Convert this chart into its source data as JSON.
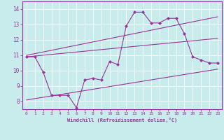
{
  "xlabel": "Windchill (Refroidissement éolien,°C)",
  "bg_color": "#c8ecec",
  "line_color": "#993399",
  "xlim": [
    -0.5,
    23.5
  ],
  "ylim": [
    7.5,
    14.5
  ],
  "yticks": [
    8,
    9,
    10,
    11,
    12,
    13,
    14
  ],
  "xticks": [
    0,
    1,
    2,
    3,
    4,
    5,
    6,
    7,
    8,
    9,
    10,
    11,
    12,
    13,
    14,
    15,
    16,
    17,
    18,
    19,
    20,
    21,
    22,
    23
  ],
  "line1_x": [
    0,
    1,
    2,
    3,
    4,
    5,
    6,
    7,
    8,
    9,
    10,
    11,
    12,
    13,
    14,
    15,
    16,
    17,
    18,
    19,
    20,
    21,
    22,
    23
  ],
  "line1_y": [
    10.9,
    10.9,
    9.9,
    8.4,
    8.4,
    8.4,
    7.6,
    9.4,
    9.5,
    9.4,
    10.6,
    10.4,
    12.9,
    13.8,
    13.8,
    13.1,
    13.1,
    13.4,
    13.4,
    12.4,
    10.9,
    10.7,
    10.5,
    10.5
  ],
  "line2_x": [
    0,
    23
  ],
  "line2_y": [
    11.0,
    13.5
  ],
  "line3_x": [
    0,
    23
  ],
  "line3_y": [
    10.9,
    12.1
  ],
  "line4_x": [
    0,
    23
  ],
  "line4_y": [
    8.1,
    10.1
  ]
}
